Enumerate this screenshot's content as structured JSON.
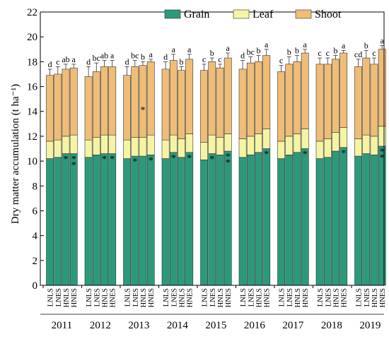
{
  "chart_data": {
    "type": "bar",
    "stacked": true,
    "title": "",
    "xlabel": "",
    "ylabel": "Dry matter accumulation (t ha⁻¹)",
    "ylim": [
      0,
      22
    ],
    "yticks": [
      0,
      2,
      4,
      6,
      8,
      10,
      12,
      14,
      16,
      18,
      20,
      22
    ],
    "grid": false,
    "legend": {
      "placement": "top-right",
      "entries": [
        "Grain",
        "Leaf",
        "Shoot"
      ]
    },
    "years": [
      "2011",
      "2012",
      "2013",
      "2014",
      "2015",
      "2016",
      "2017",
      "2018",
      "2019"
    ],
    "treatments": [
      "LNLS",
      "LNES",
      "HNLS",
      "HNES"
    ],
    "colors": {
      "Grain": "#2b9a7b",
      "Leaf": "#f4f4a4",
      "Shoot": "#efbd78"
    },
    "series": [
      {
        "name": "Grain",
        "values": [
          [
            10.2,
            10.3,
            10.6,
            10.6
          ],
          [
            10.3,
            10.5,
            10.6,
            10.6
          ],
          [
            10.2,
            10.4,
            10.4,
            10.5
          ],
          [
            10.2,
            10.7,
            10.3,
            10.7
          ],
          [
            10.1,
            10.6,
            10.5,
            10.8
          ],
          [
            10.3,
            10.5,
            10.7,
            11.0
          ],
          [
            10.2,
            10.5,
            10.7,
            11.0
          ],
          [
            10.2,
            10.3,
            10.8,
            11.1
          ],
          [
            10.4,
            10.6,
            10.5,
            11.2
          ]
        ]
      },
      {
        "name": "Leaf",
        "values": [
          [
            1.4,
            1.4,
            1.4,
            1.5
          ],
          [
            1.4,
            1.4,
            1.5,
            1.5
          ],
          [
            1.5,
            1.5,
            1.5,
            1.6
          ],
          [
            1.5,
            1.4,
            1.5,
            1.5
          ],
          [
            1.4,
            1.5,
            1.4,
            1.4
          ],
          [
            1.5,
            1.5,
            1.5,
            1.6
          ],
          [
            1.4,
            1.5,
            1.5,
            1.6
          ],
          [
            1.4,
            1.5,
            1.5,
            1.6
          ],
          [
            1.4,
            1.5,
            1.5,
            1.6
          ]
        ]
      },
      {
        "name": "Shoot",
        "values": [
          [
            5.3,
            5.3,
            5.4,
            5.4
          ],
          [
            5.1,
            5.3,
            5.5,
            5.5
          ],
          [
            5.2,
            5.7,
            5.8,
            5.9
          ],
          [
            5.7,
            6.0,
            5.5,
            6.0
          ],
          [
            5.8,
            5.9,
            5.6,
            6.1
          ],
          [
            5.6,
            5.9,
            5.8,
            5.9
          ],
          [
            5.6,
            5.8,
            5.8,
            6.1
          ],
          [
            6.2,
            6.0,
            5.9,
            6.0
          ],
          [
            5.8,
            6.2,
            5.8,
            6.2
          ]
        ]
      }
    ],
    "error": [
      [
        0.5,
        0.6,
        0.4,
        0.3
      ],
      [
        0.8,
        0.7,
        0.5,
        0.5
      ],
      [
        0.7,
        0.5,
        0.3,
        0.2
      ],
      [
        0.6,
        0.5,
        0.3,
        0.4
      ],
      [
        0.5,
        0.3,
        0.3,
        0.4
      ],
      [
        0.7,
        0.5,
        0.5,
        0.5
      ],
      [
        0.5,
        0.6,
        0.5,
        0.3
      ],
      [
        0.5,
        0.5,
        0.3,
        0.2
      ],
      [
        0.6,
        0.6,
        0.5,
        0.3
      ]
    ],
    "letters": [
      [
        "d",
        "c",
        "ab",
        "a"
      ],
      [
        "d",
        "bc",
        "ab",
        "a"
      ],
      [
        "d",
        "bc",
        "b",
        "a"
      ],
      [
        "d",
        "a",
        "b",
        "a"
      ],
      [
        "c",
        "b",
        "c",
        "a"
      ],
      [
        "d",
        "bc",
        "b",
        "a"
      ],
      [
        "c",
        "b",
        "b",
        "a"
      ],
      [
        "c",
        "c",
        "b",
        "a"
      ],
      [
        "cd",
        "b",
        "c",
        "a"
      ]
    ],
    "stars": [
      {
        "year": 0,
        "treatment": 2,
        "segment": "grain",
        "count": 1
      },
      {
        "year": 0,
        "treatment": 3,
        "segment": "grain",
        "count": 2
      },
      {
        "year": 1,
        "treatment": 2,
        "segment": "grain",
        "count": 1
      },
      {
        "year": 1,
        "treatment": 3,
        "segment": "grain",
        "count": 1
      },
      {
        "year": 2,
        "treatment": 1,
        "segment": "grain",
        "count": 1
      },
      {
        "year": 2,
        "treatment": 2,
        "segment": "shoot",
        "count": 1
      },
      {
        "year": 2,
        "treatment": 3,
        "segment": "grain",
        "count": 1
      },
      {
        "year": 3,
        "treatment": 1,
        "segment": "grain",
        "count": 1
      },
      {
        "year": 3,
        "treatment": 3,
        "segment": "grain",
        "count": 1
      },
      {
        "year": 4,
        "treatment": 1,
        "segment": "grain",
        "count": 1
      },
      {
        "year": 4,
        "treatment": 3,
        "segment": "grain",
        "count": 2
      },
      {
        "year": 5,
        "treatment": 3,
        "segment": "grain",
        "count": 1
      },
      {
        "year": 6,
        "treatment": 3,
        "segment": "grain",
        "count": 1
      },
      {
        "year": 7,
        "treatment": 3,
        "segment": "grain",
        "count": 1
      },
      {
        "year": 8,
        "treatment": 3,
        "segment": "grain",
        "count": 2
      }
    ],
    "star_symbol": "*"
  }
}
